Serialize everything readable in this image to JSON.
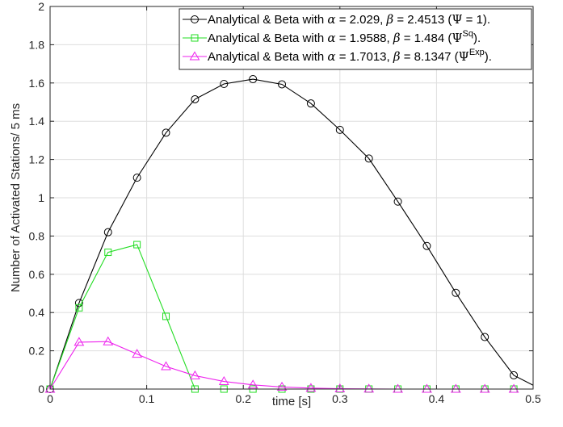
{
  "chart_data": {
    "type": "line",
    "xlabel": "time [s]",
    "ylabel": "Number of Activated Stations/ 5 ms",
    "xlim": [
      0,
      0.5
    ],
    "ylim": [
      0,
      2
    ],
    "x_ticks": [
      "0",
      "0.1",
      "0.2",
      "0.3",
      "0.4",
      "0.5"
    ],
    "y_ticks": [
      "0",
      "0.2",
      "0.4",
      "0.6",
      "0.8",
      "1",
      "1.2",
      "1.4",
      "1.6",
      "1.8",
      "2"
    ],
    "grid": true,
    "legend_position": "top-right",
    "series": [
      {
        "legend": {
          "prefix": "Analytical & Beta with ",
          "alpha_sym": "α",
          "alpha_val": " = 2.029, ",
          "beta_sym": "β",
          "beta_val": " = 2.4513 (",
          "psi": "Ψ",
          "sup": "",
          "suffix": " = 1)."
        },
        "color": "#000000",
        "marker": "circle",
        "x": [
          0,
          0.03,
          0.06,
          0.09,
          0.12,
          0.15,
          0.18,
          0.21,
          0.24,
          0.27,
          0.3,
          0.33,
          0.36,
          0.39,
          0.42,
          0.45,
          0.48,
          0.5
        ],
        "y": [
          0,
          0.45,
          0.82,
          1.105,
          1.34,
          1.515,
          1.595,
          1.62,
          1.593,
          1.493,
          1.355,
          1.205,
          0.98,
          0.748,
          0.503,
          0.272,
          0.072,
          0.02
        ]
      },
      {
        "legend": {
          "prefix": "Analytical & Beta with ",
          "alpha_sym": "α",
          "alpha_val": " = 1.9588, ",
          "beta_sym": "β",
          "beta_val": " = 1.484 (",
          "psi": "Ψ",
          "sup": "Sq",
          "suffix": ")."
        },
        "color": "#22dd22",
        "marker": "square",
        "x": [
          0,
          0.03,
          0.06,
          0.09,
          0.12,
          0.15,
          0.18,
          0.21,
          0.24,
          0.27,
          0.3,
          0.33,
          0.36,
          0.39,
          0.42,
          0.45,
          0.48
        ],
        "y": [
          0,
          0.425,
          0.715,
          0.755,
          0.38,
          0,
          0,
          0,
          0,
          0,
          0,
          0,
          0,
          0,
          0,
          0,
          0
        ]
      },
      {
        "legend": {
          "prefix": "Analytical & Beta with ",
          "alpha_sym": "α",
          "alpha_val": " = 1.7013, ",
          "beta_sym": "β",
          "beta_val": " = 8.1347 (",
          "psi": "Ψ",
          "sup": "Exp",
          "suffix": ")."
        },
        "color": "#ee22ee",
        "marker": "triangle",
        "x": [
          0,
          0.03,
          0.06,
          0.09,
          0.12,
          0.15,
          0.18,
          0.21,
          0.24,
          0.27,
          0.3,
          0.33,
          0.36,
          0.39,
          0.42,
          0.45,
          0.48
        ],
        "y": [
          0,
          0.245,
          0.248,
          0.183,
          0.118,
          0.07,
          0.04,
          0.022,
          0.011,
          0.005,
          0.002,
          0.001,
          0,
          0,
          0,
          0,
          0
        ]
      }
    ]
  }
}
